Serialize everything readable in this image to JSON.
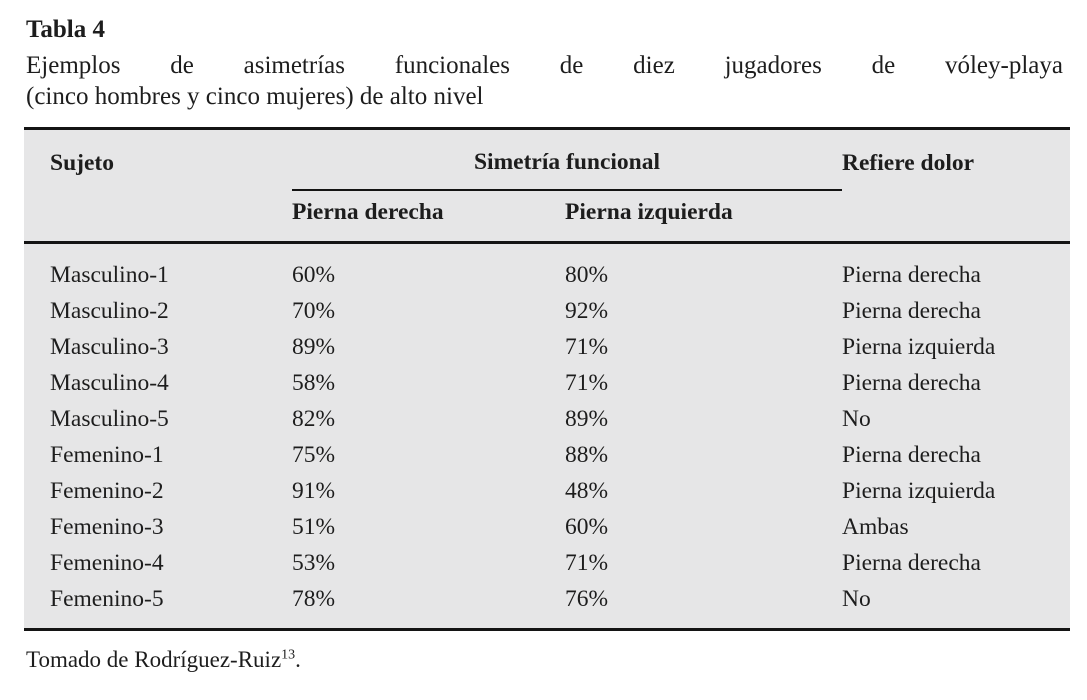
{
  "page": {
    "title": "Tabla 4",
    "caption_line1": "Ejemplos de asimetrías funcionales de diez jugadores de vóley-playa",
    "caption_line2": "(cinco hombres y cinco mujeres) de alto nivel",
    "footnote": {
      "text": "Tomado de Rodríguez-Ruiz",
      "ref": "13",
      "suffix": "."
    }
  },
  "table": {
    "header": {
      "subject": "Sujeto",
      "group": "Simetría funcional",
      "right_leg": "Pierna derecha",
      "left_leg": "Pierna izquierda",
      "pain": "Refiere dolor"
    },
    "rows": [
      {
        "subject": "Masculino-1",
        "right": "60%",
        "left": "80%",
        "pain": "Pierna derecha"
      },
      {
        "subject": "Masculino-2",
        "right": "70%",
        "left": "92%",
        "pain": "Pierna derecha"
      },
      {
        "subject": "Masculino-3",
        "right": "89%",
        "left": "71%",
        "pain": "Pierna izquierda"
      },
      {
        "subject": "Masculino-4",
        "right": "58%",
        "left": "71%",
        "pain": "Pierna derecha"
      },
      {
        "subject": "Masculino-5",
        "right": "82%",
        "left": "89%",
        "pain": "No"
      },
      {
        "subject": "Femenino-1",
        "right": "75%",
        "left": "88%",
        "pain": "Pierna derecha"
      },
      {
        "subject": "Femenino-2",
        "right": "91%",
        "left": "48%",
        "pain": "Pierna izquierda"
      },
      {
        "subject": "Femenino-3",
        "right": "51%",
        "left": "60%",
        "pain": "Ambas"
      },
      {
        "subject": "Femenino-4",
        "right": "53%",
        "left": "71%",
        "pain": "Pierna derecha"
      },
      {
        "subject": "Femenino-5",
        "right": "78%",
        "left": "76%",
        "pain": "No"
      }
    ]
  },
  "colors": {
    "text": "#1d1d1d",
    "table_bg": "#e6e6e7",
    "rule": "#141414",
    "page_bg": "#ffffff"
  }
}
